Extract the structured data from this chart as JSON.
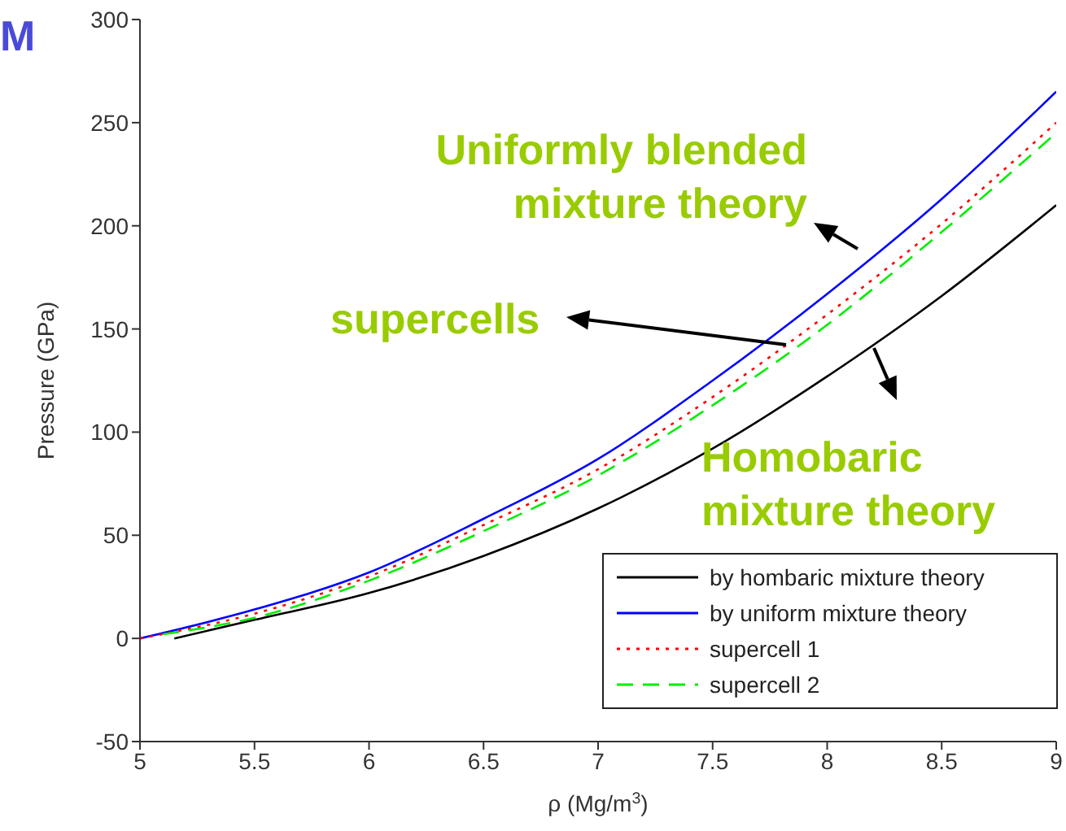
{
  "chart_data": {
    "type": "line",
    "xlabel": "ρ (Mg/m$^{3}$)",
    "ylabel": "Pressure (GPa)",
    "xlim": [
      5,
      9
    ],
    "xticks": [
      5,
      5.5,
      6,
      6.5,
      7,
      7.5,
      8,
      8.5,
      9
    ],
    "ylim": [
      -50,
      300
    ],
    "yticks": [
      -50,
      0,
      50,
      100,
      150,
      200,
      250,
      300
    ],
    "legend": "bottom right",
    "grid": false,
    "marker": "none",
    "annotations": [
      "M",
      "Uniformly blended mixture theory",
      "supercells",
      "Homobaric mixture theory"
    ],
    "series": [
      {
        "name": "by hombaric mixture theory",
        "color": "#000000",
        "line_style": "solid",
        "x": [
          5.15,
          5.5,
          6,
          6.5,
          7,
          7.5,
          8,
          8.5,
          9
        ],
        "values": [
          0,
          9,
          22,
          40,
          63,
          92,
          127,
          166,
          210
        ]
      },
      {
        "name": "by uniform mixture theory",
        "color": "#0000ff",
        "line_style": "solid",
        "x": [
          5,
          5.5,
          6,
          6.5,
          7,
          7.5,
          8,
          8.5,
          9
        ],
        "values": [
          0,
          14,
          32,
          58,
          87,
          125,
          167,
          213,
          265
        ]
      },
      {
        "name": "supercell 1",
        "color": "#ff0000",
        "line_style": "dotted",
        "x": [
          5,
          5.5,
          6,
          6.5,
          7,
          7.5,
          8,
          8.5,
          9
        ],
        "values": [
          0,
          12,
          30,
          55,
          82,
          117,
          157,
          201,
          250
        ]
      },
      {
        "name": "supercell 2",
        "color": "#00ee00",
        "line_style": "dashed",
        "x": [
          5.1,
          5.5,
          6,
          6.5,
          7,
          7.5,
          8,
          8.5,
          9
        ],
        "values": [
          2,
          10,
          28,
          52,
          79,
          113,
          152,
          197,
          245
        ]
      }
    ]
  }
}
